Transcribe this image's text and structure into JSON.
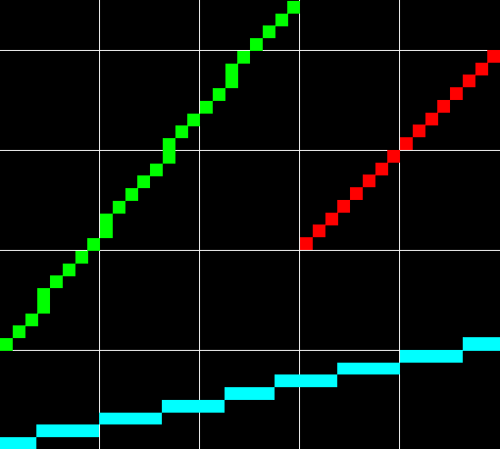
{
  "colors": {
    "background": "#000000",
    "grid": "#ffffff",
    "green_line": "#00ff00",
    "red_line": "#ff0000",
    "cyan_line": "#00ffff"
  },
  "grid": {
    "visible": true
  },
  "pixel_lines": [
    {
      "name": "green-staircase-line",
      "color_key": "green_line",
      "style": "diagonal-steep"
    },
    {
      "name": "red-staircase-line",
      "color_key": "red_line",
      "style": "diagonal-steep"
    },
    {
      "name": "cyan-staircase-line",
      "color_key": "cyan_line",
      "style": "shallow-steps"
    }
  ]
}
